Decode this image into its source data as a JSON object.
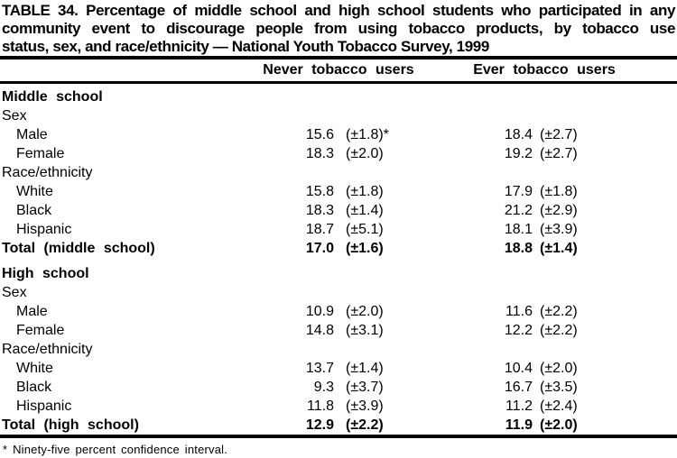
{
  "header": {
    "title_lines": [
      "TABLE 34. Percentage of middle school and high school students who participated in any",
      "community event to discourage people from using tobacco products, by tobacco use",
      "status, sex, and race/ethnicity — National Youth Tobacco Survey, 1999"
    ]
  },
  "table": {
    "column_headers": [
      "Never tobacco users",
      "Ever tobacco users"
    ],
    "rows": [
      {
        "label": "Middle school",
        "style": "section",
        "indent": 0,
        "v1": "",
        "ci1": "",
        "v2": "",
        "ci2": ""
      },
      {
        "label": "Sex",
        "style": "plain",
        "indent": 0,
        "v1": "",
        "ci1": "",
        "v2": "",
        "ci2": ""
      },
      {
        "label": "Male",
        "style": "plain",
        "indent": 1,
        "v1": "15.6",
        "ci1": "(±1.8)*",
        "v2": "18.4",
        "ci2": "(±2.7)"
      },
      {
        "label": "Female",
        "style": "plain",
        "indent": 1,
        "v1": "18.3",
        "ci1": "(±2.0)",
        "v2": "19.2",
        "ci2": "(±2.7)"
      },
      {
        "label": "Race/ethnicity",
        "style": "plain",
        "indent": 0,
        "v1": "",
        "ci1": "",
        "v2": "",
        "ci2": ""
      },
      {
        "label": "White",
        "style": "plain",
        "indent": 1,
        "v1": "15.8",
        "ci1": "(±1.8)",
        "v2": "17.9",
        "ci2": "(±1.8)"
      },
      {
        "label": "Black",
        "style": "plain",
        "indent": 1,
        "v1": "18.3",
        "ci1": "(±1.4)",
        "v2": "21.2",
        "ci2": "(±2.9)"
      },
      {
        "label": "Hispanic",
        "style": "plain",
        "indent": 1,
        "v1": "18.7",
        "ci1": "(±5.1)",
        "v2": "18.1",
        "ci2": "(±3.9)"
      },
      {
        "label": "Total (middle school)",
        "style": "total",
        "indent": 0,
        "v1": "17.0",
        "ci1": "(±1.6)",
        "v2": "18.8",
        "ci2": "(±1.4)"
      },
      {
        "label": "High school",
        "style": "section",
        "indent": 0,
        "gap_before": true,
        "v1": "",
        "ci1": "",
        "v2": "",
        "ci2": ""
      },
      {
        "label": "Sex",
        "style": "plain",
        "indent": 0,
        "v1": "",
        "ci1": "",
        "v2": "",
        "ci2": ""
      },
      {
        "label": "Male",
        "style": "plain",
        "indent": 1,
        "v1": "10.9",
        "ci1": "(±2.0)",
        "v2": "11.6",
        "ci2": "(±2.2)"
      },
      {
        "label": "Female",
        "style": "plain",
        "indent": 1,
        "v1": "14.8",
        "ci1": "(±3.1)",
        "v2": "12.2",
        "ci2": "(±2.2)"
      },
      {
        "label": "Race/ethnicity",
        "style": "plain",
        "indent": 0,
        "v1": "",
        "ci1": "",
        "v2": "",
        "ci2": ""
      },
      {
        "label": "White",
        "style": "plain",
        "indent": 1,
        "v1": "13.7",
        "ci1": "(±1.4)",
        "v2": "10.4",
        "ci2": "(±2.0)"
      },
      {
        "label": "Black",
        "style": "plain",
        "indent": 1,
        "v1": "9.3",
        "ci1": "(±3.7)",
        "v2": "16.7",
        "ci2": "(±3.5)"
      },
      {
        "label": "Hispanic",
        "style": "plain",
        "indent": 1,
        "v1": "11.8",
        "ci1": "(±3.9)",
        "v2": "11.2",
        "ci2": "(±2.4)"
      },
      {
        "label": "Total (high school)",
        "style": "total",
        "indent": 0,
        "v1": "12.9",
        "ci1": "(±2.2)",
        "v2": "11.9",
        "ci2": "(±2.0)"
      }
    ]
  },
  "footnote": "* Ninety-five percent confidence interval.",
  "colors": {
    "text": "#000000",
    "background": "#ffffff",
    "rule": "#000000"
  }
}
